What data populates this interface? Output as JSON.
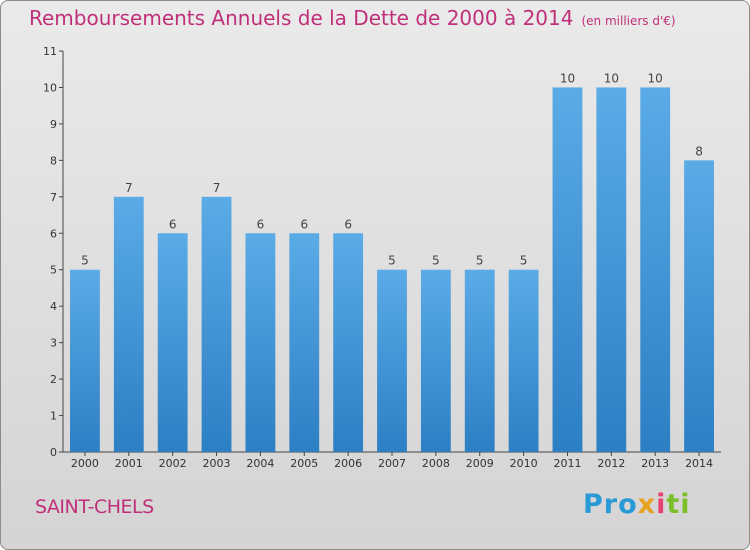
{
  "title": "Remboursements Annuels de la Dette de 2000 à 2014",
  "subtitle": "(en milliers d'€)",
  "commune": "SAINT-CHELS",
  "logo": {
    "p1": "Pro",
    "p2": "x",
    "p3": "i",
    "p4": "ti"
  },
  "colors": {
    "bar": "#3f93d6",
    "title": "#c0307a",
    "background": "#e0e0e0"
  },
  "chart_data": {
    "type": "bar",
    "title": "Remboursements Annuels de la Dette de 2000 à 2014",
    "ylabel": "en milliers d'€",
    "xlabel": "",
    "categories": [
      "2000",
      "2001",
      "2002",
      "2003",
      "2004",
      "2005",
      "2006",
      "2007",
      "2008",
      "2009",
      "2010",
      "2011",
      "2012",
      "2013",
      "2014"
    ],
    "values": [
      5,
      7,
      6,
      7,
      6,
      6,
      6,
      5,
      5,
      5,
      5,
      10,
      10,
      10,
      8
    ],
    "ylim": [
      0,
      11
    ],
    "yticks": [
      0,
      1,
      2,
      3,
      4,
      5,
      6,
      7,
      8,
      9,
      10,
      11
    ],
    "grid": false,
    "legend": "none"
  }
}
